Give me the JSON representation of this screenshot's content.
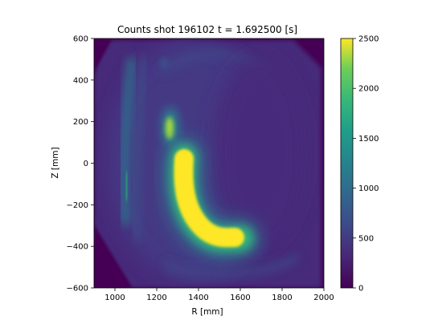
{
  "chart_data": {
    "type": "heatmap",
    "title": "Counts shot 196102 t = 1.692500 [s]",
    "xlabel": "R [mm]",
    "ylabel": "Z [mm]",
    "xlim": [
      900,
      2000
    ],
    "ylim": [
      -600,
      600
    ],
    "x_ticks": [
      "1000",
      "1200",
      "1400",
      "1600",
      "1800",
      "2000"
    ],
    "x_tick_values": [
      1000,
      1200,
      1400,
      1600,
      1800,
      2000
    ],
    "y_ticks": [
      "600",
      "400",
      "200",
      "0",
      "−200",
      "−400",
      "−600"
    ],
    "y_tick_values": [
      600,
      400,
      200,
      0,
      -200,
      -400,
      -600
    ],
    "colorbar": {
      "min": 0,
      "max": 2500,
      "colormap": "viridis",
      "ticks": [
        "2500",
        "2000",
        "1500",
        "1000",
        "500",
        "0"
      ],
      "tick_values": [
        2500,
        2000,
        1500,
        1000,
        500,
        0
      ]
    },
    "features": [
      {
        "name": "main-emission-band",
        "peak_counts": 2500,
        "R_range": [
          1290,
          1590
        ],
        "Z_range": [
          -380,
          80
        ]
      },
      {
        "name": "upper-emission-spot",
        "peak_counts": 1900,
        "R_range": [
          1250,
          1290
        ],
        "Z_range": [
          110,
          260
        ]
      },
      {
        "name": "left-emission-strip",
        "peak_counts": 1100,
        "R_range": [
          1040,
          1090
        ],
        "Z_range": [
          -300,
          500
        ]
      },
      {
        "name": "outer-faint-arc",
        "peak_counts": 650,
        "R_range": [
          1180,
          1750
        ],
        "Z_range": [
          -480,
          520
        ]
      }
    ]
  }
}
